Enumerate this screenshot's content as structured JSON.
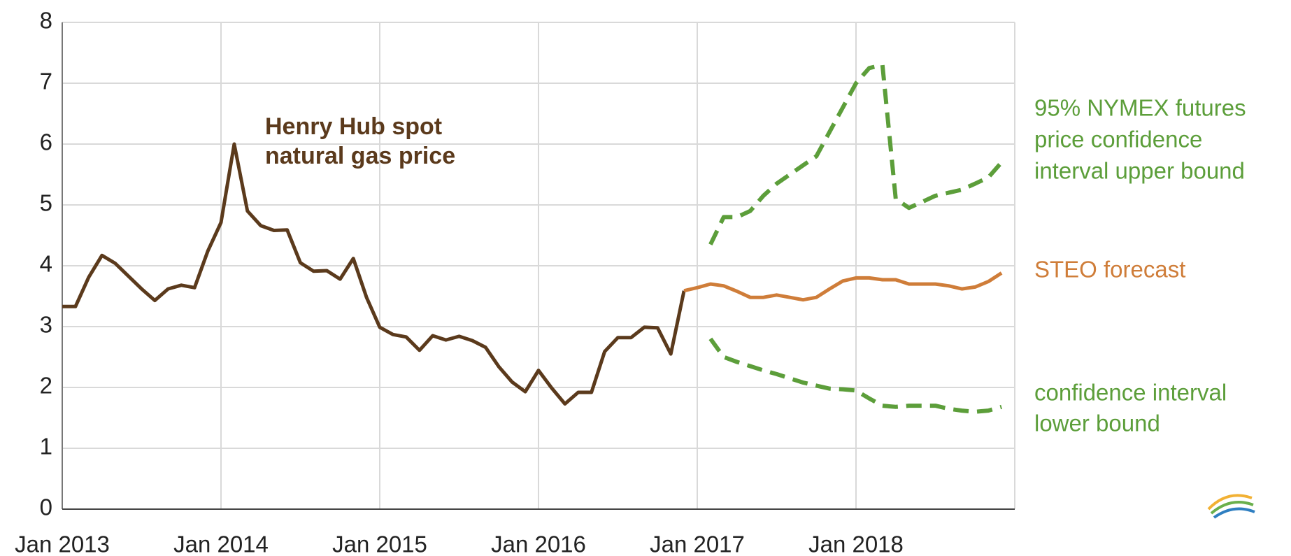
{
  "chart_data": {
    "type": "line",
    "categories": [
      "Jan 2013",
      null,
      null,
      null,
      null,
      null,
      null,
      null,
      null,
      null,
      null,
      null,
      "Jan 2014",
      null,
      null,
      null,
      null,
      null,
      null,
      null,
      null,
      null,
      null,
      null,
      "Jan 2015",
      null,
      null,
      null,
      null,
      null,
      null,
      null,
      null,
      null,
      null,
      null,
      "Jan 2016",
      null,
      null,
      null,
      null,
      null,
      null,
      null,
      null,
      null,
      null,
      null,
      "Jan 2017",
      null,
      null,
      null,
      null,
      null,
      null,
      null,
      null,
      null,
      null,
      null,
      "Jan 2018",
      null,
      null,
      null,
      null,
      null,
      null,
      null,
      null,
      null,
      null,
      null
    ],
    "ylim": [
      0,
      8
    ],
    "yticks": [
      0,
      1,
      2,
      3,
      4,
      5,
      6,
      7,
      8
    ],
    "grid": true,
    "series": [
      {
        "name": "Henry Hub spot natural gas price",
        "color": "#5b3a1c",
        "style": "solid",
        "values": [
          3.33,
          3.33,
          3.81,
          4.17,
          4.04,
          3.83,
          3.62,
          3.43,
          3.62,
          3.68,
          3.64,
          4.24,
          4.71,
          6.0,
          4.9,
          4.66,
          4.58,
          4.59,
          4.05,
          3.91,
          3.92,
          3.78,
          4.12,
          3.48,
          2.99,
          2.87,
          2.83,
          2.61,
          2.85,
          2.78,
          2.84,
          2.77,
          2.66,
          2.34,
          2.09,
          1.93,
          2.28,
          1.99,
          1.73,
          1.92,
          1.92,
          2.59,
          2.82,
          2.82,
          2.99,
          2.98,
          2.55,
          3.59,
          null,
          null,
          null,
          null,
          null,
          null,
          null,
          null,
          null,
          null,
          null,
          null,
          null,
          null,
          null,
          null,
          null,
          null,
          null,
          null,
          null,
          null,
          null,
          null
        ]
      },
      {
        "name": "STEO forecast",
        "color": "#cf7d39",
        "style": "solid",
        "values": [
          null,
          null,
          null,
          null,
          null,
          null,
          null,
          null,
          null,
          null,
          null,
          null,
          null,
          null,
          null,
          null,
          null,
          null,
          null,
          null,
          null,
          null,
          null,
          null,
          null,
          null,
          null,
          null,
          null,
          null,
          null,
          null,
          null,
          null,
          null,
          null,
          null,
          null,
          null,
          null,
          null,
          null,
          null,
          null,
          null,
          null,
          null,
          3.59,
          3.64,
          3.7,
          3.67,
          3.58,
          3.48,
          3.48,
          3.52,
          3.48,
          3.44,
          3.48,
          3.62,
          3.75,
          3.8,
          3.8,
          3.77,
          3.77,
          3.7,
          3.7,
          3.7,
          3.67,
          3.62,
          3.65,
          3.74,
          3.88
        ]
      },
      {
        "name": "95% NYMEX futures price confidence interval upper bound",
        "color": "#5c9e3a",
        "style": "dashed",
        "values": [
          null,
          null,
          null,
          null,
          null,
          null,
          null,
          null,
          null,
          null,
          null,
          null,
          null,
          null,
          null,
          null,
          null,
          null,
          null,
          null,
          null,
          null,
          null,
          null,
          null,
          null,
          null,
          null,
          null,
          null,
          null,
          null,
          null,
          null,
          null,
          null,
          null,
          null,
          null,
          null,
          null,
          null,
          null,
          null,
          null,
          null,
          null,
          null,
          null,
          4.35,
          4.8,
          4.8,
          4.9,
          5.15,
          5.35,
          5.5,
          5.65,
          5.8,
          6.2,
          6.6,
          7.0,
          7.25,
          7.3,
          5.1,
          4.95,
          5.05,
          5.15,
          5.2,
          5.25,
          5.35,
          5.45,
          5.7
        ]
      },
      {
        "name": "confidence interval lower bound",
        "color": "#5c9e3a",
        "style": "dashed",
        "values": [
          null,
          null,
          null,
          null,
          null,
          null,
          null,
          null,
          null,
          null,
          null,
          null,
          null,
          null,
          null,
          null,
          null,
          null,
          null,
          null,
          null,
          null,
          null,
          null,
          null,
          null,
          null,
          null,
          null,
          null,
          null,
          null,
          null,
          null,
          null,
          null,
          null,
          null,
          null,
          null,
          null,
          null,
          null,
          null,
          null,
          null,
          null,
          null,
          null,
          2.8,
          2.5,
          2.42,
          2.35,
          2.28,
          2.22,
          2.15,
          2.08,
          2.03,
          1.98,
          1.97,
          1.95,
          1.82,
          1.7,
          1.68,
          1.7,
          1.7,
          1.7,
          1.65,
          1.62,
          1.6,
          1.62,
          1.68
        ]
      }
    ],
    "annotations": [
      {
        "lines": [
          "Henry Hub spot",
          "natural gas price"
        ],
        "color": "#5b3a1c"
      },
      {
        "lines": [
          "95% NYMEX futures",
          "price confidence",
          "interval upper bound"
        ],
        "color": "#5c9e3a"
      },
      {
        "lines": [
          "STEO forecast"
        ],
        "color": "#cf7d39"
      },
      {
        "lines": [
          "confidence interval",
          "lower bound"
        ],
        "color": "#5c9e3a"
      }
    ],
    "logo": "eia"
  }
}
